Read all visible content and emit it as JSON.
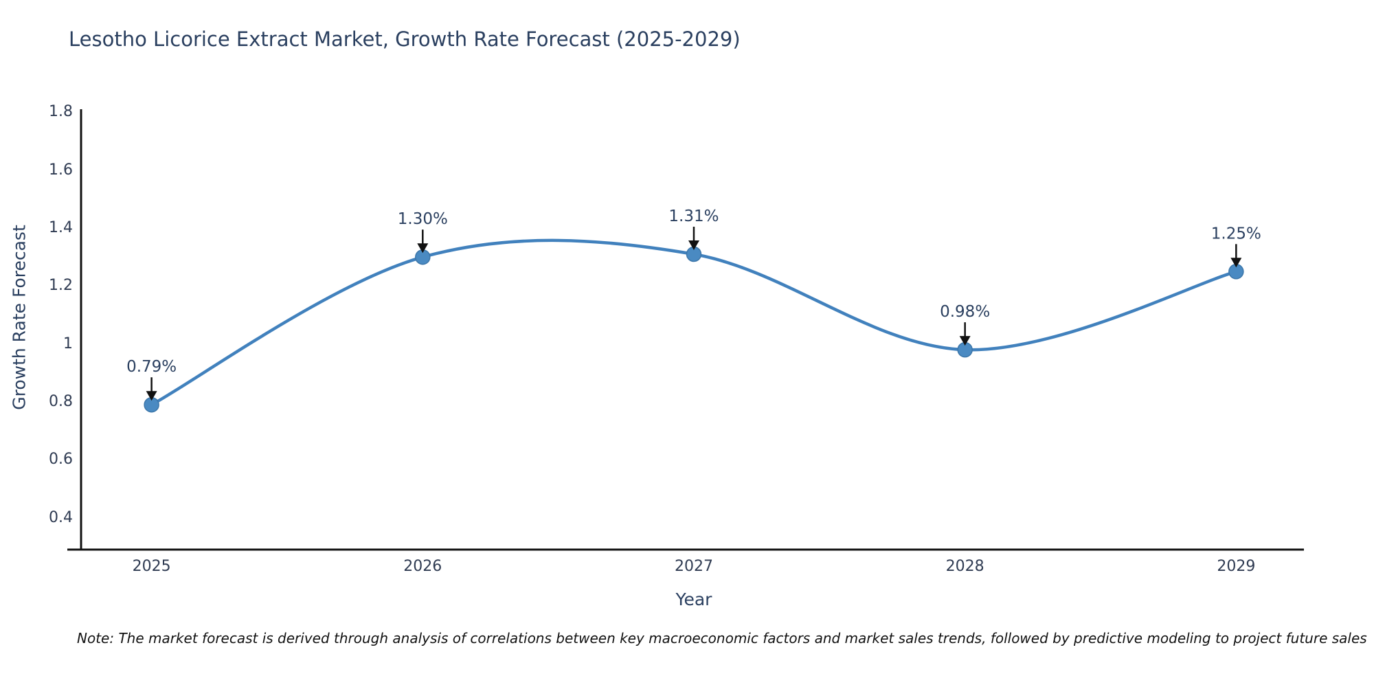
{
  "title": "Lesotho Licorice Extract Market, Growth Rate Forecast (2025-2029)",
  "footnote": "Note: The market forecast is derived through analysis of correlations between key macroeconomic factors and market sales trends, followed by predictive modeling to project future sales",
  "chart_data": {
    "type": "line",
    "title": "Lesotho Licorice Extract Market, Growth Rate Forecast (2025-2029)",
    "xlabel": "Year",
    "ylabel": "Growth Rate Forecast",
    "x": [
      2025,
      2026,
      2027,
      2028,
      2029
    ],
    "values": [
      0.79,
      1.3,
      1.31,
      0.98,
      1.25
    ],
    "point_labels": [
      "0.79%",
      "1.30%",
      "1.31%",
      "0.98%",
      "1.25%"
    ],
    "x_tick_labels": [
      "2025",
      "2026",
      "2027",
      "2028",
      "2029"
    ],
    "y_tick_labels": [
      "0.4",
      "0.6",
      "0.8",
      "1",
      "1.2",
      "1.4",
      "1.6",
      "1.8"
    ],
    "y_tick_values": [
      0.4,
      0.6,
      0.8,
      1.0,
      1.2,
      1.4,
      1.6,
      1.8
    ],
    "xlim": [
      2024.74,
      2029.25
    ],
    "ylim": [
      0.29,
      1.82
    ],
    "line_shape": "spline",
    "grid": false,
    "legend": "none",
    "colors": {
      "line": "#4181bd",
      "marker": "#4a8ac2",
      "marker_edge": "#3c76a9",
      "arrow": "#111111",
      "text": "#2a3f5f",
      "axis": "#111111"
    }
  }
}
